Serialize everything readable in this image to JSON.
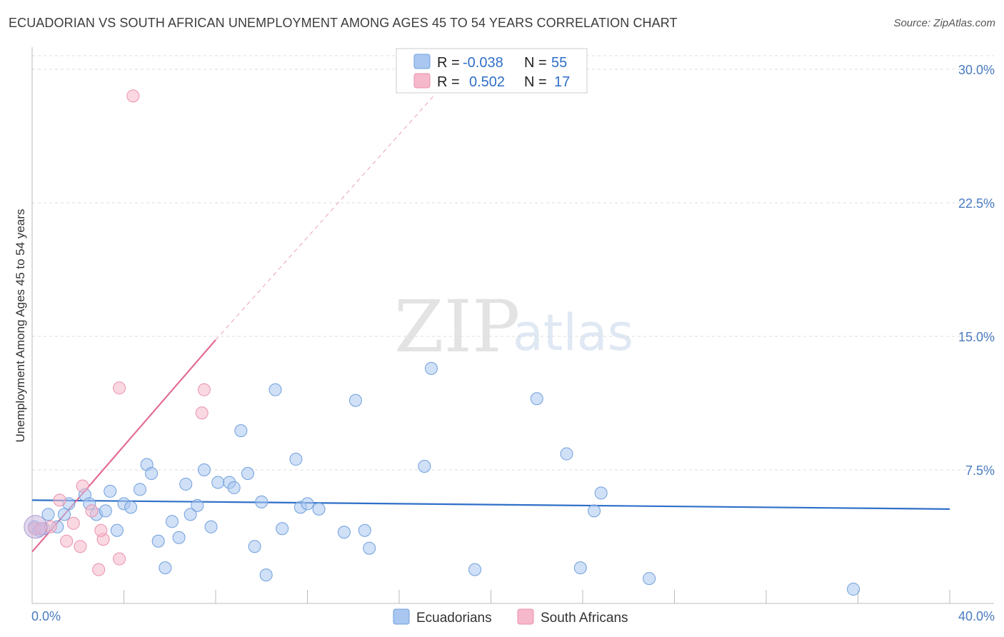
{
  "header": {
    "title": "ECUADORIAN VS SOUTH AFRICAN UNEMPLOYMENT AMONG AGES 45 TO 54 YEARS CORRELATION CHART",
    "source": "Source: ZipAtlas.com"
  },
  "watermark": {
    "part1": "ZIP",
    "part2": "atlas"
  },
  "legend_box": {
    "rows": [
      {
        "r_label": "R =",
        "r_value": "-0.038",
        "n_label": "N =",
        "n_value": "55",
        "color": "#a9c7f0"
      },
      {
        "r_label": "R =",
        "r_value": "0.502",
        "n_label": "N =",
        "n_value": "17",
        "color": "#f6b8cb"
      }
    ]
  },
  "chart_data": {
    "type": "scatter",
    "title": "ECUADORIAN VS SOUTH AFRICAN UNEMPLOYMENT AMONG AGES 45 TO 54 YEARS CORRELATION CHART",
    "xlabel": "",
    "ylabel": "Unemployment Among Ages 45 to 54 years",
    "xlim": [
      0,
      40
    ],
    "ylim": [
      0,
      30
    ],
    "x_tick_labels": [
      "0.0%",
      "40.0%"
    ],
    "y_ticks": [
      7.5,
      15.0,
      22.5,
      30.0
    ],
    "y_tick_labels": [
      "7.5%",
      "15.0%",
      "22.5%",
      "30.0%"
    ],
    "grid": "horizontal dashed",
    "series": [
      {
        "name": "Ecuadorians",
        "color": "#a9c7f0",
        "edge": "#6f9fdc",
        "points": [
          [
            0.1,
            4.3
          ],
          [
            0.3,
            4.1
          ],
          [
            0.5,
            4.2
          ],
          [
            0.7,
            5.0
          ],
          [
            1.1,
            4.3
          ],
          [
            1.4,
            5.0
          ],
          [
            1.6,
            5.6
          ],
          [
            2.3,
            6.1
          ],
          [
            2.5,
            5.6
          ],
          [
            2.8,
            5.0
          ],
          [
            3.2,
            5.2
          ],
          [
            3.4,
            6.3
          ],
          [
            3.7,
            4.1
          ],
          [
            4.0,
            5.6
          ],
          [
            4.3,
            5.4
          ],
          [
            4.7,
            6.4
          ],
          [
            5.0,
            7.8
          ],
          [
            5.2,
            7.3
          ],
          [
            5.5,
            3.5
          ],
          [
            5.8,
            2.0
          ],
          [
            6.1,
            4.6
          ],
          [
            6.4,
            3.7
          ],
          [
            6.7,
            6.7
          ],
          [
            6.9,
            5.0
          ],
          [
            7.2,
            5.5
          ],
          [
            7.5,
            7.5
          ],
          [
            7.8,
            4.3
          ],
          [
            8.1,
            6.8
          ],
          [
            8.6,
            6.8
          ],
          [
            8.8,
            6.5
          ],
          [
            9.1,
            9.7
          ],
          [
            9.4,
            7.3
          ],
          [
            9.7,
            3.2
          ],
          [
            10.0,
            5.7
          ],
          [
            10.2,
            1.6
          ],
          [
            10.6,
            12.0
          ],
          [
            10.9,
            4.2
          ],
          [
            11.5,
            8.1
          ],
          [
            11.7,
            5.4
          ],
          [
            12.0,
            5.6
          ],
          [
            12.5,
            5.3
          ],
          [
            13.6,
            4.0
          ],
          [
            14.1,
            11.4
          ],
          [
            14.5,
            4.1
          ],
          [
            14.7,
            3.1
          ],
          [
            17.1,
            7.7
          ],
          [
            17.4,
            13.2
          ],
          [
            19.3,
            1.9
          ],
          [
            22.0,
            11.5
          ],
          [
            23.3,
            8.4
          ],
          [
            23.9,
            2.0
          ],
          [
            24.5,
            5.2
          ],
          [
            24.8,
            6.2
          ],
          [
            26.9,
            1.4
          ],
          [
            35.8,
            0.8
          ]
        ]
      },
      {
        "name": "South Africans",
        "color": "#f6b8cb",
        "edge": "#e991ad",
        "points": [
          [
            0.1,
            4.2
          ],
          [
            0.4,
            4.2
          ],
          [
            0.8,
            4.3
          ],
          [
            1.2,
            5.8
          ],
          [
            1.5,
            3.5
          ],
          [
            1.8,
            4.5
          ],
          [
            2.1,
            3.2
          ],
          [
            2.2,
            6.6
          ],
          [
            2.6,
            5.2
          ],
          [
            2.9,
            1.9
          ],
          [
            3.1,
            3.6
          ],
          [
            3.8,
            2.5
          ],
          [
            3.8,
            12.1
          ],
          [
            4.4,
            28.5
          ],
          [
            7.4,
            10.7
          ],
          [
            7.5,
            12.0
          ],
          [
            3.0,
            4.1
          ]
        ]
      }
    ],
    "trend_lines": [
      {
        "series": "Ecuadorians",
        "color": "#2f6fc8",
        "from": [
          0,
          5.8
        ],
        "to": [
          40,
          5.3
        ],
        "style": "solid"
      },
      {
        "series": "South Africans",
        "color": "#e36b96",
        "from": [
          0,
          2.9
        ],
        "to": [
          8,
          14.8
        ],
        "style": "solid"
      },
      {
        "series": "South Africans",
        "color": "#e9a0b9",
        "from": [
          8,
          14.8
        ],
        "to": [
          17.5,
          28.5
        ],
        "style": "dashed"
      }
    ]
  },
  "bottom_legend": [
    {
      "label": "Ecuadorians",
      "color": "#a9c7f0"
    },
    {
      "label": "South Africans",
      "color": "#f6b8cb"
    }
  ]
}
